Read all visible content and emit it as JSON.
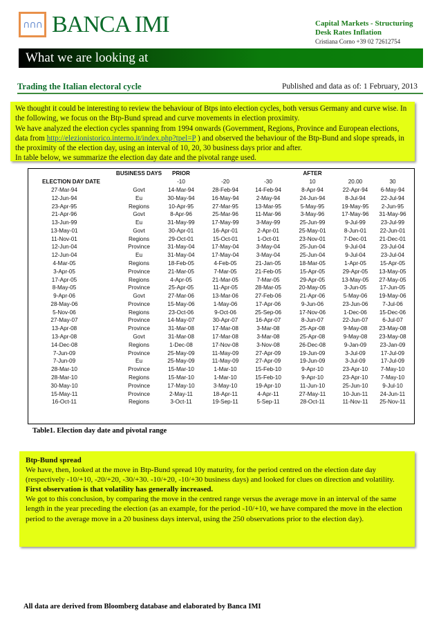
{
  "header": {
    "brand": "BANCA IMI",
    "logo_glyph": "∩∩∩",
    "desk_line1": "Capital Markets - Structuring",
    "desk_line2": "Desk Rates Inflation",
    "contact": "Cristiana Corno +39 02 72612754"
  },
  "banner": {
    "title": "What we are looking at"
  },
  "report": {
    "subtitle": "Trading the Italian electoral cycle",
    "published": "Published and data as of: 1 February, 2013"
  },
  "intro": {
    "p1": "We thought it could be interesting to review the behaviour of Btps into election cycles, both versus Germany and curve wise. In the following, we focus on the Btp-Bund spread and curve movements in election proximity.",
    "p2a": "We have analyzed the election cycles spanning from 1994 onwards (Government, Regions, Province and European elections, data from ",
    "link": "http://elezionistorico.interno.it/index.php?tpel=P",
    "p2b": " ) and observed the behaviour of the Btp-Bund and slope spreads, in the proximity of the election day, using an interval of 10, 20, 30 business days prior and after.",
    "p3": "In table below, we summarize the election day date and the pivotal range used."
  },
  "table": {
    "group_headers": {
      "business_days": "BUSINESS DAYS",
      "prior": "PRIOR",
      "after": "AFTER"
    },
    "columns": [
      "ELECTION DAY DATE",
      "",
      "-10",
      "-20",
      "-30",
      "10",
      "20.00",
      "30"
    ],
    "rows": [
      [
        "27-Mar-94",
        "Govt",
        "14-Mar-94",
        "28-Feb-94",
        "14-Feb-94",
        "8-Apr-94",
        "22-Apr-94",
        "6-May-94"
      ],
      [
        "12-Jun-94",
        "Eu",
        "30-May-94",
        "16-May-94",
        "2-May-94",
        "24-Jun-94",
        "8-Jul-94",
        "22-Jul-94"
      ],
      [
        "23-Apr-95",
        "Regions",
        "10-Apr-95",
        "27-Mar-95",
        "13-Mar-95",
        "5-May-95",
        "19-May-95",
        "2-Jun-95"
      ],
      [
        "21-Apr-96",
        "Govt",
        "8-Apr-96",
        "25-Mar-96",
        "11-Mar-96",
        "3-May-96",
        "17-May-96",
        "31-May-96"
      ],
      [
        "13-Jun-99",
        "Eu",
        "31-May-99",
        "17-May-99",
        "3-May-99",
        "25-Jun-99",
        "9-Jul-99",
        "23-Jul-99"
      ],
      [
        "13-May-01",
        "Govt",
        "30-Apr-01",
        "16-Apr-01",
        "2-Apr-01",
        "25-May-01",
        "8-Jun-01",
        "22-Jun-01"
      ],
      [
        "11-Nov-01",
        "Regions",
        "29-Oct-01",
        "15-Oct-01",
        "1-Oct-01",
        "23-Nov-01",
        "7-Dec-01",
        "21-Dec-01"
      ],
      [
        "12-Jun-04",
        "Province",
        "31-May-04",
        "17-May-04",
        "3-May-04",
        "25-Jun-04",
        "9-Jul-04",
        "23-Jul-04"
      ],
      [
        "12-Jun-04",
        "Eu",
        "31-May-04",
        "17-May-04",
        "3-May-04",
        "25-Jun-04",
        "9-Jul-04",
        "23-Jul-04"
      ],
      [
        "4-Mar-05",
        "Regions",
        "18-Feb-05",
        "4-Feb-05",
        "21-Jan-05",
        "18-Mar-05",
        "1-Apr-05",
        "15-Apr-05"
      ],
      [
        "3-Apr-05",
        "Province",
        "21-Mar-05",
        "7-Mar-05",
        "21-Feb-05",
        "15-Apr-05",
        "29-Apr-05",
        "13-May-05"
      ],
      [
        "17-Apr-05",
        "Regions",
        "4-Apr-05",
        "21-Mar-05",
        "7-Mar-05",
        "29-Apr-05",
        "13-May-05",
        "27-May-05"
      ],
      [
        "8-May-05",
        "Province",
        "25-Apr-05",
        "11-Apr-05",
        "28-Mar-05",
        "20-May-05",
        "3-Jun-05",
        "17-Jun-05"
      ],
      [
        "9-Apr-06",
        "Govt",
        "27-Mar-06",
        "13-Mar-06",
        "27-Feb-06",
        "21-Apr-06",
        "5-May-06",
        "19-May-06"
      ],
      [
        "28-May-06",
        "Province",
        "15-May-06",
        "1-May-06",
        "17-Apr-06",
        "9-Jun-06",
        "23-Jun-06",
        "7-Jul-06"
      ],
      [
        "5-Nov-06",
        "Regions",
        "23-Oct-06",
        "9-Oct-06",
        "25-Sep-06",
        "17-Nov-06",
        "1-Dec-06",
        "15-Dec-06"
      ],
      [
        "27-May-07",
        "Province",
        "14-May-07",
        "30-Apr-07",
        "16-Apr-07",
        "8-Jun-07",
        "22-Jun-07",
        "6-Jul-07"
      ],
      [
        "13-Apr-08",
        "Province",
        "31-Mar-08",
        "17-Mar-08",
        "3-Mar-08",
        "25-Apr-08",
        "9-May-08",
        "23-May-08"
      ],
      [
        "13-Apr-08",
        "Govt",
        "31-Mar-08",
        "17-Mar-08",
        "3-Mar-08",
        "25-Apr-08",
        "9-May-08",
        "23-May-08"
      ],
      [
        "14-Dec-08",
        "Regions",
        "1-Dec-08",
        "17-Nov-08",
        "3-Nov-08",
        "26-Dec-08",
        "9-Jan-09",
        "23-Jan-09"
      ],
      [
        "7-Jun-09",
        "Province",
        "25-May-09",
        "11-May-09",
        "27-Apr-09",
        "19-Jun-09",
        "3-Jul-09",
        "17-Jul-09"
      ],
      [
        "7-Jun-09",
        "Eu",
        "25-May-09",
        "11-May-09",
        "27-Apr-09",
        "19-Jun-09",
        "3-Jul-09",
        "17-Jul-09"
      ],
      [
        "28-Mar-10",
        "Province",
        "15-Mar-10",
        "1-Mar-10",
        "15-Feb-10",
        "9-Apr-10",
        "23-Apr-10",
        "7-May-10"
      ],
      [
        "28-Mar-10",
        "Regions",
        "15-Mar-10",
        "1-Mar-10",
        "15-Feb-10",
        "9-Apr-10",
        "23-Apr-10",
        "7-May-10"
      ],
      [
        "30-May-10",
        "Province",
        "17-May-10",
        "3-May-10",
        "19-Apr-10",
        "11-Jun-10",
        "25-Jun-10",
        "9-Jul-10"
      ],
      [
        "15-May-11",
        "Province",
        "2-May-11",
        "18-Apr-11",
        "4-Apr-11",
        "27-May-11",
        "10-Jun-11",
        "24-Jun-11"
      ],
      [
        "16-Oct-11",
        "Regions",
        "3-Oct-11",
        "19-Sep-11",
        "5-Sep-11",
        "28-Oct-11",
        "11-Nov-11",
        "25-Nov-11"
      ]
    ],
    "caption": "Table1. Election day date and pivotal range"
  },
  "observation": {
    "heading": "Btp-Bund spread",
    "p1": "We have, then, looked at the move in Btp-Bund spread 10y maturity, for the period centred on the election date day (respectively -10/+10, -20/+20, -30/+30. -10/+20, -10/+30 business days) and looked for clues on direction and volatility.",
    "heading2": "First observation is that volatility has generally increased.",
    "p2": "We got to this conclusion, by comparing the move in the centred range versus the average move in an interval of the same length in the year preceding the election (as an example, for the period -10/+10, we have compared the move in the election period to the average move in a 20 business days interval, using the 250 observations prior to the election day)."
  },
  "footer": {
    "text": "All data are derived from Bloomberg database and elaborated by Banca IMI"
  },
  "colors": {
    "brand_green": "#0b6b2a",
    "highlight": "#e5ff14",
    "logo_orange": "#e8904a"
  }
}
